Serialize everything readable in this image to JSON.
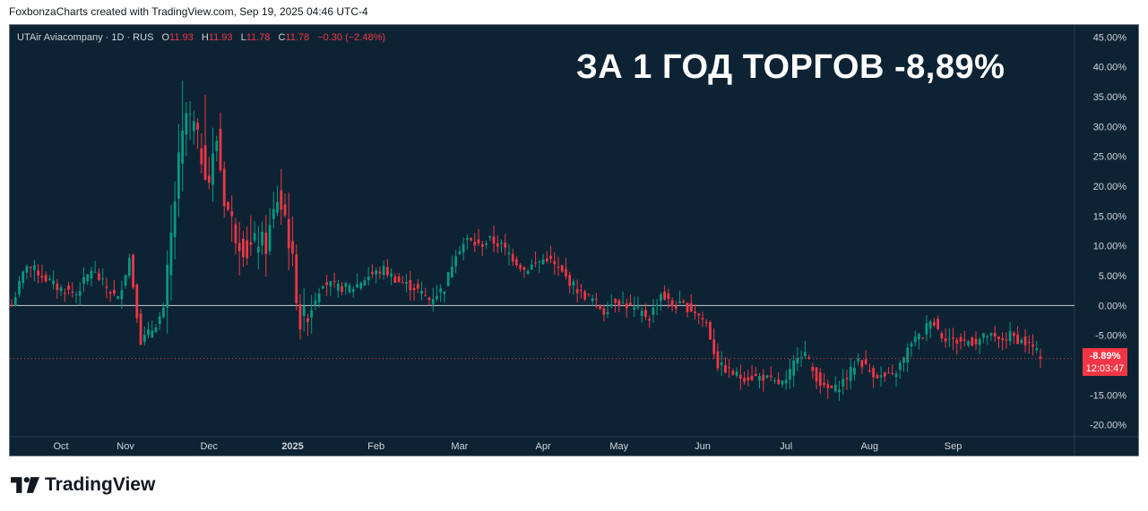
{
  "credit": "FoxbonzaCharts created with TradingView.com, Sep 19, 2025 04:46 UTC-4",
  "legend": {
    "symbol": "UTAir Aviacompany · 1D · RUS",
    "open_label": "O",
    "open_value": "11.93",
    "high_label": "H",
    "high_value": "11.93",
    "low_label": "L",
    "low_value": "11.78",
    "close_label": "C",
    "close_value": "11.78",
    "change": "−0.30 (−2.48%)"
  },
  "headline": "ЗА 1 ГОД ТОРГОВ -8,89%",
  "price_tag": {
    "value": "-8.89%",
    "countdown": "12:03:47"
  },
  "brand": {
    "name": "TradingView",
    "icon": "tradingview-logo-icon"
  },
  "colors": {
    "background": "#0d2333",
    "up": "#089981",
    "down": "#f23645",
    "text": "#d1d4dc"
  },
  "chart_data": {
    "type": "candlestick",
    "interval": "1D",
    "scale": "percent",
    "ylim": [
      -22,
      47
    ],
    "y_ticks": [
      45,
      40,
      35,
      30,
      25,
      20,
      15,
      10,
      5,
      0,
      -5,
      -10,
      -15,
      -20
    ],
    "y_tick_labels": [
      "45.00%",
      "40.00%",
      "35.00%",
      "30.00%",
      "25.00%",
      "20.00%",
      "15.00%",
      "10.00%",
      "5.00%",
      "0.00%",
      "-5.00%",
      "-10.00%",
      "-15.00%",
      "-20.00%"
    ],
    "x_tick_labels": [
      "Oct",
      "Nov",
      "Dec",
      "2025",
      "Feb",
      "Mar",
      "Apr",
      "May",
      "Jun",
      "Jul",
      "Aug",
      "Sep"
    ],
    "baseline": 0,
    "last_value": -8.89,
    "anchors": [
      [
        0,
        0
      ],
      [
        4,
        7
      ],
      [
        8,
        5
      ],
      [
        12,
        3
      ],
      [
        17,
        2
      ],
      [
        21,
        6
      ],
      [
        25,
        3
      ],
      [
        28,
        1
      ],
      [
        31,
        8
      ],
      [
        34,
        -6
      ],
      [
        37,
        -4
      ],
      [
        40,
        -1
      ],
      [
        44,
        24
      ],
      [
        46,
        32
      ],
      [
        48,
        30
      ],
      [
        50,
        25
      ],
      [
        52,
        21
      ],
      [
        54,
        28
      ],
      [
        56,
        18
      ],
      [
        59,
        12
      ],
      [
        62,
        9
      ],
      [
        65,
        11
      ],
      [
        67,
        10
      ],
      [
        70,
        18
      ],
      [
        72,
        15
      ],
      [
        74,
        7
      ],
      [
        76,
        -3
      ],
      [
        79,
        0
      ],
      [
        82,
        4
      ],
      [
        86,
        3
      ],
      [
        90,
        3
      ],
      [
        94,
        5
      ],
      [
        98,
        6
      ],
      [
        102,
        4
      ],
      [
        106,
        3
      ],
      [
        110,
        1
      ],
      [
        114,
        3
      ],
      [
        117,
        9
      ],
      [
        120,
        11
      ],
      [
        123,
        10
      ],
      [
        126,
        11
      ],
      [
        129,
        10
      ],
      [
        132,
        8
      ],
      [
        135,
        6
      ],
      [
        138,
        7
      ],
      [
        141,
        8
      ],
      [
        144,
        6
      ],
      [
        147,
        4
      ],
      [
        150,
        2
      ],
      [
        153,
        1
      ],
      [
        156,
        -1
      ],
      [
        159,
        1
      ],
      [
        162,
        0
      ],
      [
        165,
        -1
      ],
      [
        168,
        -2
      ],
      [
        171,
        2
      ],
      [
        174,
        0
      ],
      [
        177,
        0
      ],
      [
        180,
        -1
      ],
      [
        183,
        -3
      ],
      [
        186,
        -10
      ],
      [
        189,
        -11
      ],
      [
        192,
        -12
      ],
      [
        195,
        -12
      ],
      [
        198,
        -12
      ],
      [
        201,
        -13
      ],
      [
        204,
        -13
      ],
      [
        207,
        -8
      ],
      [
        209,
        -8
      ],
      [
        211,
        -11
      ],
      [
        214,
        -14
      ],
      [
        217,
        -14
      ],
      [
        220,
        -12
      ],
      [
        223,
        -9
      ],
      [
        226,
        -11
      ],
      [
        229,
        -12
      ],
      [
        232,
        -12
      ],
      [
        235,
        -9
      ],
      [
        237,
        -6
      ],
      [
        240,
        -5
      ],
      [
        242,
        -2
      ],
      [
        245,
        -5
      ],
      [
        248,
        -6
      ],
      [
        251,
        -6
      ],
      [
        254,
        -6
      ],
      [
        257,
        -5
      ],
      [
        260,
        -6
      ],
      [
        263,
        -5
      ],
      [
        266,
        -6
      ],
      [
        269,
        -7
      ],
      [
        271,
        -8.89
      ]
    ]
  }
}
